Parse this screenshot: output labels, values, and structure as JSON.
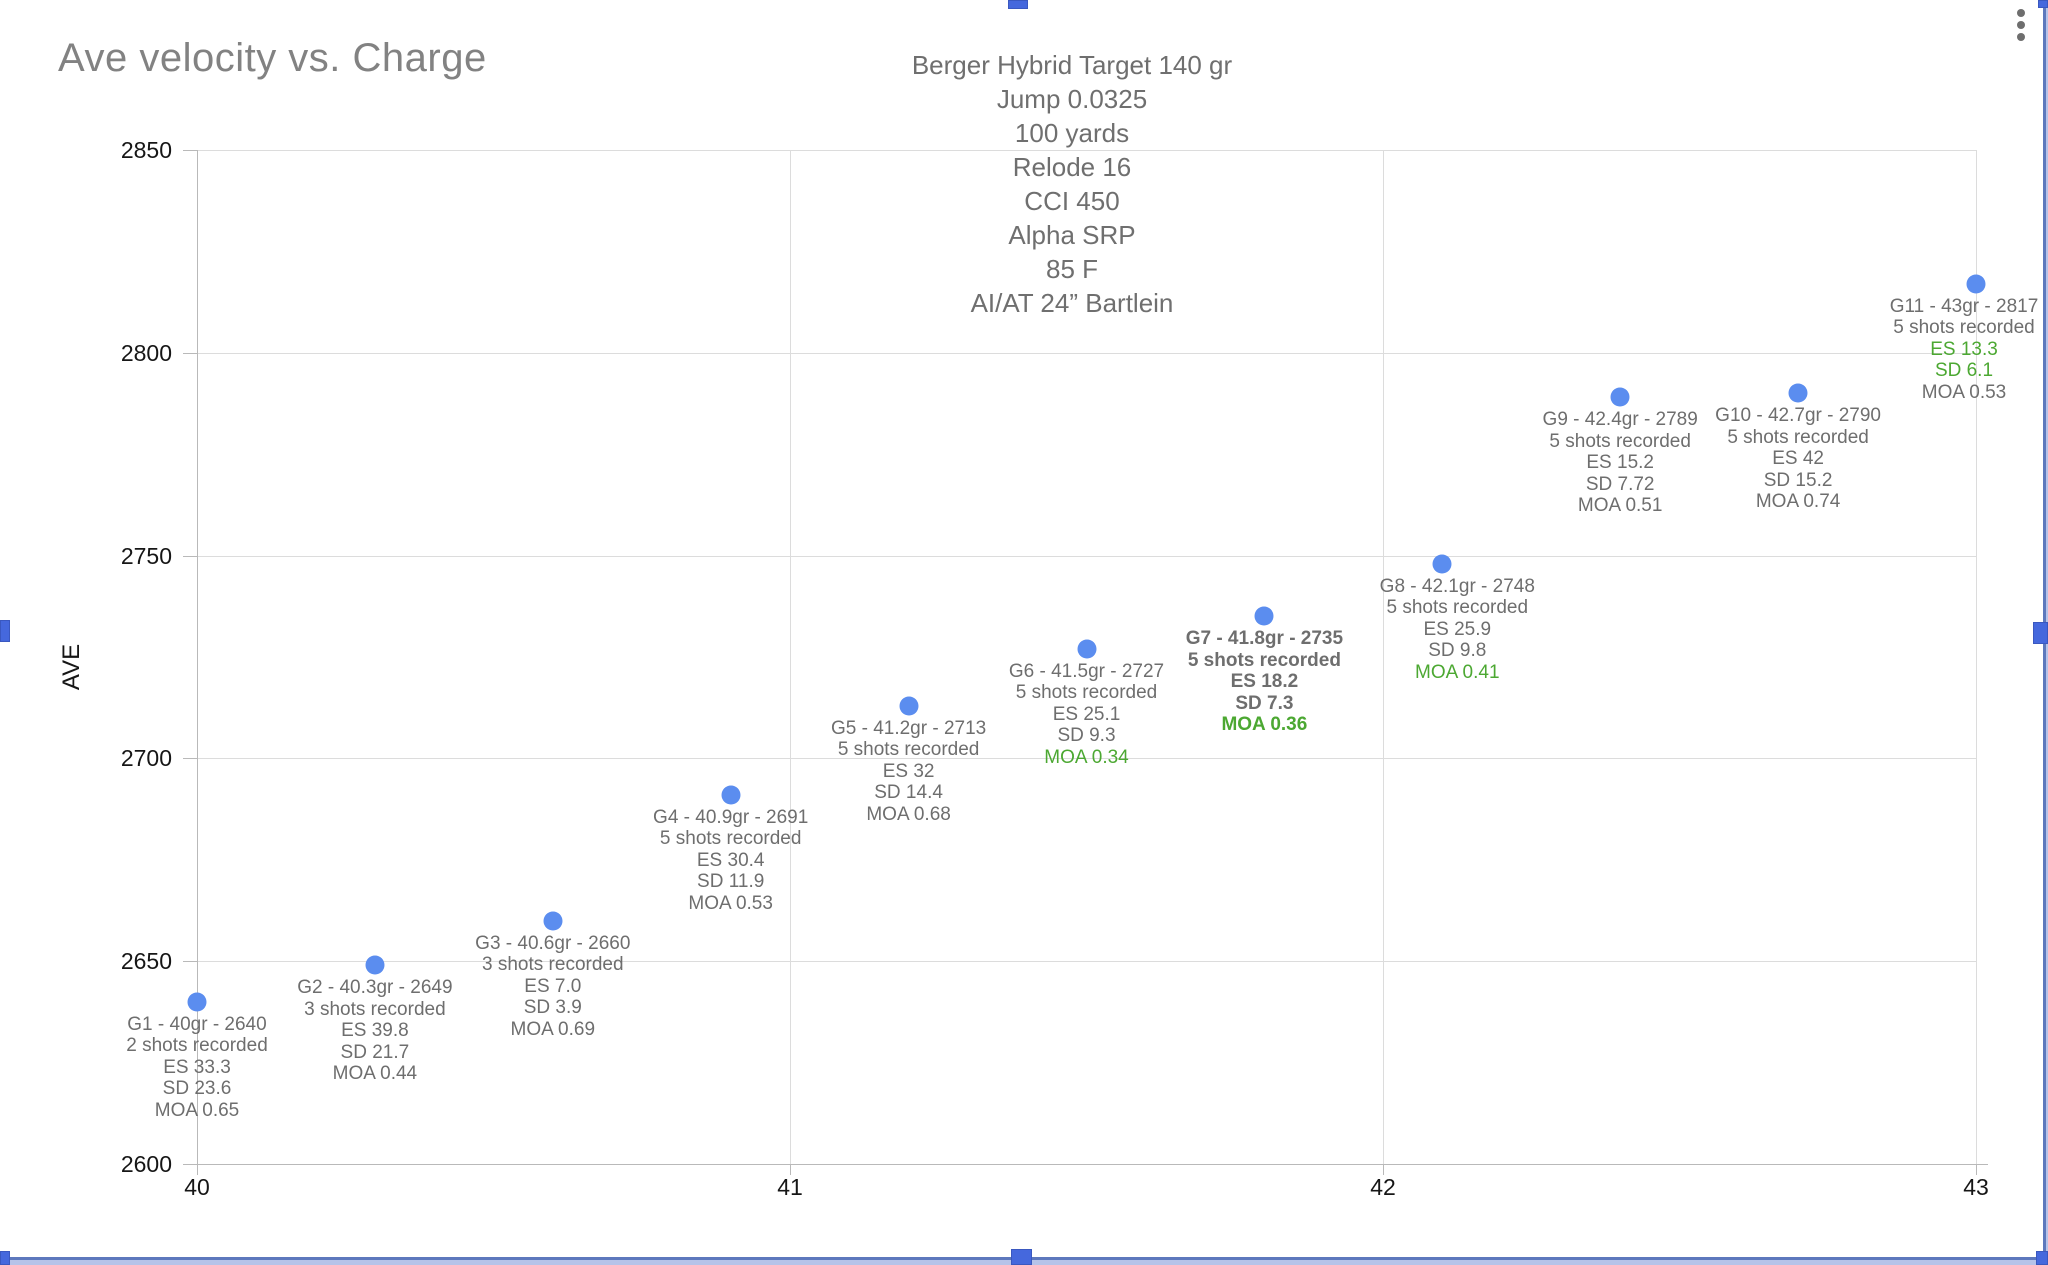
{
  "chart_data": {
    "type": "scatter",
    "title": "Ave velocity vs. Charge",
    "x_axis": {
      "ticks": [
        40,
        41,
        42,
        43
      ],
      "range": [
        40,
        43
      ],
      "label": ""
    },
    "y_axis": {
      "title": "AVE",
      "ticks": [
        2600,
        2650,
        2700,
        2750,
        2800,
        2850
      ],
      "range": [
        2600,
        2850
      ]
    },
    "grid": true,
    "legend_position": "none",
    "annotation": {
      "lines": [
        "Berger Hybrid Target 140 gr",
        "Jump 0.0325",
        "100 yards",
        "Relode 16",
        "CCI 450",
        "Alpha SRP",
        "85 F",
        "AI/AT 24” Bartlein"
      ]
    },
    "series": [
      {
        "name": "AVE",
        "points": [
          {
            "id": "G1",
            "x": 40.0,
            "y": 2640,
            "bold": false,
            "dx": 0,
            "lines": [
              {
                "t": "G1 - 40gr - 2640",
                "green": false
              },
              {
                "t": "2 shots recorded",
                "green": false
              },
              {
                "t": "ES 33.3",
                "green": false
              },
              {
                "t": "SD 23.6",
                "green": false
              },
              {
                "t": "MOA 0.65",
                "green": false
              }
            ]
          },
          {
            "id": "G2",
            "x": 40.3,
            "y": 2649,
            "bold": false,
            "dx": 0,
            "lines": [
              {
                "t": "G2 - 40.3gr - 2649",
                "green": false
              },
              {
                "t": "3 shots recorded",
                "green": false
              },
              {
                "t": "ES 39.8",
                "green": false
              },
              {
                "t": "SD 21.7",
                "green": false
              },
              {
                "t": "MOA 0.44",
                "green": false
              }
            ]
          },
          {
            "id": "G3",
            "x": 40.6,
            "y": 2660,
            "bold": false,
            "dx": 0,
            "lines": [
              {
                "t": "G3 - 40.6gr - 2660",
                "green": false
              },
              {
                "t": "3 shots recorded",
                "green": false
              },
              {
                "t": "ES 7.0",
                "green": false
              },
              {
                "t": "SD 3.9",
                "green": false
              },
              {
                "t": "MOA 0.69",
                "green": false
              }
            ]
          },
          {
            "id": "G4",
            "x": 40.9,
            "y": 2691,
            "bold": false,
            "dx": 0,
            "lines": [
              {
                "t": "G4 - 40.9gr - 2691",
                "green": false
              },
              {
                "t": "5 shots recorded",
                "green": false
              },
              {
                "t": "ES 30.4",
                "green": false
              },
              {
                "t": "SD 11.9",
                "green": false
              },
              {
                "t": "MOA 0.53",
                "green": false
              }
            ]
          },
          {
            "id": "G5",
            "x": 41.2,
            "y": 2713,
            "bold": false,
            "dx": 0,
            "lines": [
              {
                "t": "G5 - 41.2gr - 2713",
                "green": false
              },
              {
                "t": "5 shots recorded",
                "green": false
              },
              {
                "t": "ES 32",
                "green": false
              },
              {
                "t": "SD 14.4",
                "green": false
              },
              {
                "t": "MOA 0.68",
                "green": false
              }
            ]
          },
          {
            "id": "G6",
            "x": 41.5,
            "y": 2727,
            "bold": false,
            "dx": 0,
            "lines": [
              {
                "t": "G6 - 41.5gr - 2727",
                "green": false
              },
              {
                "t": "5 shots recorded",
                "green": false
              },
              {
                "t": "ES 25.1",
                "green": false
              },
              {
                "t": "SD 9.3",
                "green": false
              },
              {
                "t": "MOA 0.34",
                "green": true
              }
            ]
          },
          {
            "id": "G7",
            "x": 41.8,
            "y": 2735,
            "bold": true,
            "dx": 0,
            "lines": [
              {
                "t": "G7 - 41.8gr - 2735",
                "green": false
              },
              {
                "t": "5 shots recorded",
                "green": false
              },
              {
                "t": "ES 18.2",
                "green": false
              },
              {
                "t": "SD 7.3",
                "green": false
              },
              {
                "t": "MOA 0.36",
                "green": true
              }
            ]
          },
          {
            "id": "G8",
            "x": 42.1,
            "y": 2748,
            "bold": false,
            "dx": 15,
            "lines": [
              {
                "t": "G8 - 42.1gr - 2748",
                "green": false
              },
              {
                "t": "5 shots recorded",
                "green": false
              },
              {
                "t": "ES 25.9",
                "green": false
              },
              {
                "t": "SD 9.8",
                "green": false
              },
              {
                "t": "MOA 0.41",
                "green": true
              }
            ]
          },
          {
            "id": "G9",
            "x": 42.4,
            "y": 2789,
            "bold": false,
            "dx": 0,
            "lines": [
              {
                "t": "G9 - 42.4gr - 2789",
                "green": false
              },
              {
                "t": "5 shots recorded",
                "green": false
              },
              {
                "t": "ES 15.2",
                "green": false
              },
              {
                "t": "SD 7.72",
                "green": false
              },
              {
                "t": "MOA 0.51",
                "green": false
              }
            ]
          },
          {
            "id": "G10",
            "x": 42.7,
            "y": 2790,
            "bold": false,
            "dx": 0,
            "lines": [
              {
                "t": "G10 - 42.7gr - 2790",
                "green": false
              },
              {
                "t": "5 shots recorded",
                "green": false
              },
              {
                "t": "ES 42",
                "green": false
              },
              {
                "t": "SD 15.2",
                "green": false
              },
              {
                "t": "MOA 0.74",
                "green": false
              }
            ]
          },
          {
            "id": "G11",
            "x": 43.0,
            "y": 2817,
            "bold": false,
            "dx": -12,
            "lines": [
              {
                "t": "G11 - 43gr - 2817",
                "green": false
              },
              {
                "t": "5 shots recorded",
                "green": false
              },
              {
                "t": "ES 13.3",
                "green": true
              },
              {
                "t": "SD 6.1",
                "green": true
              },
              {
                "t": "MOA 0.53",
                "green": false
              }
            ]
          }
        ]
      }
    ],
    "colors": {
      "point": "#5b8def",
      "label_text": "#6e6e6e",
      "highlight_green": "#4ca832",
      "title_text": "#828282",
      "annotation_text": "#6f6f6f",
      "axis_line": "#b9b9b9",
      "gridline": "#dcdcdc",
      "tick_label": "#161616",
      "selection_border": "#5d78bd",
      "selection_handle": "#4568dd",
      "menu_dots": "#6e6e6e"
    }
  }
}
